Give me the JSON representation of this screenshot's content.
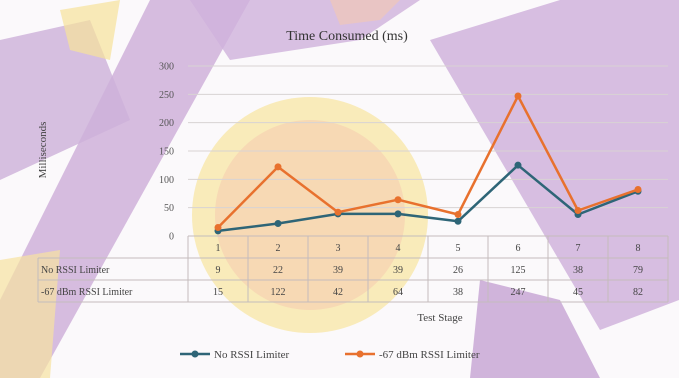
{
  "chart_data": {
    "type": "line",
    "title": "Time Consumed (ms)",
    "xlabel": "Test Stage",
    "ylabel": "Milliseconds",
    "ylim": [
      0,
      300
    ],
    "yticks": [
      0,
      50,
      100,
      150,
      200,
      250,
      300
    ],
    "categories": [
      "1",
      "2",
      "3",
      "4",
      "5",
      "6",
      "7",
      "8"
    ],
    "series": [
      {
        "name": "No RSSI Limiter",
        "color": "#2e6577",
        "values": [
          9,
          22,
          39,
          39,
          26,
          125,
          38,
          79
        ]
      },
      {
        "name": "-67 dBm RSSI Limiter",
        "color": "#e8712e",
        "values": [
          15,
          122,
          42,
          64,
          38,
          247,
          45,
          82
        ]
      }
    ],
    "legend": "bottom",
    "grid": true,
    "data_table": true
  }
}
